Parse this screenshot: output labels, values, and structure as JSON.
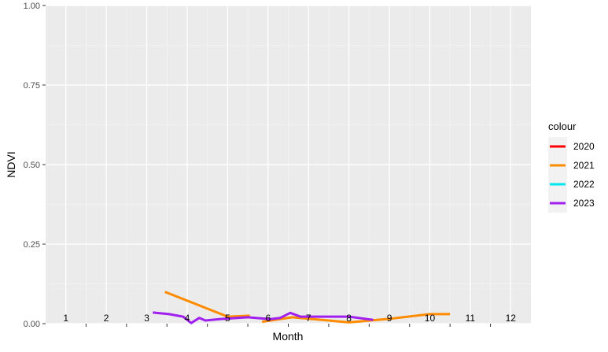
{
  "chart_data": {
    "type": "line",
    "title": "",
    "xlabel": "Month",
    "ylabel": "NDVI",
    "xlim": [
      0.5,
      12.5
    ],
    "ylim": [
      0,
      1
    ],
    "x_ticks": [
      1,
      2,
      3,
      4,
      5,
      6,
      7,
      8,
      9,
      10,
      11,
      12
    ],
    "x_tick_labels": [
      "1",
      "2",
      "3",
      "4",
      "5",
      "6",
      "7",
      "8",
      "9",
      "10",
      "11",
      "12"
    ],
    "y_ticks": [
      0,
      0.25,
      0.5,
      0.75,
      1
    ],
    "y_tick_labels": [
      "0.00",
      "0.25",
      "0.50",
      "0.75",
      "1.00"
    ],
    "grid": true,
    "legend": {
      "title": "colour",
      "position": "right",
      "entries": [
        {
          "label": "2020",
          "color": "#ff0000"
        },
        {
          "label": "2021",
          "color": "#ff8c00"
        },
        {
          "label": "2022",
          "color": "#00e5ee"
        },
        {
          "label": "2023",
          "color": "#a020f0"
        }
      ]
    },
    "series": [
      {
        "name": "2020",
        "color": "#ff0000",
        "segments": []
      },
      {
        "name": "2021",
        "color": "#ff8c00",
        "segments": [
          [
            [
              3.45,
              0.1
            ],
            [
              5.0,
              0.022
            ],
            [
              5.55,
              0.025
            ]
          ],
          [
            [
              5.85,
              0.006
            ],
            [
              6.6,
              0.02
            ],
            [
              7.5,
              0.01
            ],
            [
              8.0,
              0.004
            ],
            [
              9.0,
              0.015
            ],
            [
              10.0,
              0.03
            ],
            [
              10.5,
              0.03
            ]
          ]
        ]
      },
      {
        "name": "2022",
        "color": "#00e5ee",
        "segments": []
      },
      {
        "name": "2023",
        "color": "#a020f0",
        "segments": [
          [
            [
              3.15,
              0.035
            ],
            [
              3.55,
              0.03
            ],
            [
              3.9,
              0.022
            ],
            [
              4.1,
              0.002
            ],
            [
              4.3,
              0.018
            ],
            [
              4.45,
              0.01
            ],
            [
              4.8,
              0.014
            ],
            [
              5.5,
              0.02
            ],
            [
              6.05,
              0.014
            ],
            [
              6.3,
              0.018
            ],
            [
              6.55,
              0.034
            ],
            [
              6.8,
              0.022
            ],
            [
              7.6,
              0.022
            ],
            [
              8.0,
              0.022
            ],
            [
              8.6,
              0.012
            ]
          ]
        ]
      }
    ]
  }
}
